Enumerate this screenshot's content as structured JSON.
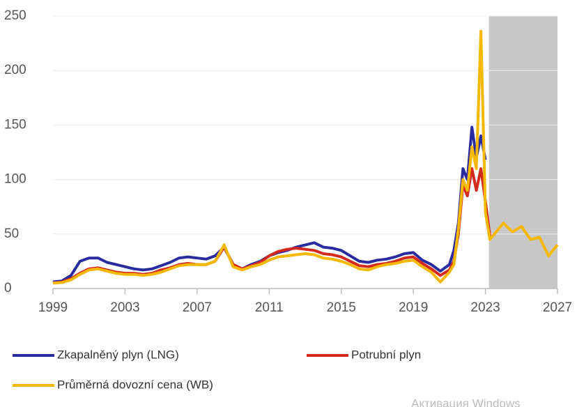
{
  "chart_data": {
    "type": "line",
    "x": [
      1999,
      1999.5,
      2000,
      2000.5,
      2001,
      2001.5,
      2002,
      2002.5,
      2003,
      2003.5,
      2004,
      2004.5,
      2005,
      2005.5,
      2006,
      2006.5,
      2007,
      2007.5,
      2008,
      2008.5,
      2009,
      2009.5,
      2010,
      2010.5,
      2011,
      2011.5,
      2012,
      2012.5,
      2013,
      2013.5,
      2014,
      2014.5,
      2015,
      2015.5,
      2016,
      2016.5,
      2017,
      2017.5,
      2018,
      2018.5,
      2019,
      2019.5,
      2020,
      2020.5,
      2021,
      2021.25,
      2021.5,
      2021.75,
      2022,
      2022.25,
      2022.5,
      2022.75,
      2023,
      2023.25,
      2023.5,
      2024,
      2024.5,
      2025,
      2025.5,
      2026,
      2026.5,
      2027
    ],
    "series": [
      {
        "name": "Zkapalněný plyn (LNG)",
        "color": "#2b2ba0",
        "values": [
          6,
          7,
          12,
          25,
          28,
          28,
          24,
          22,
          20,
          18,
          17,
          18,
          21,
          24,
          28,
          29,
          28,
          27,
          30,
          38,
          22,
          18,
          22,
          25,
          30,
          33,
          35,
          38,
          40,
          42,
          38,
          37,
          35,
          30,
          25,
          24,
          26,
          27,
          29,
          32,
          33,
          26,
          22,
          16,
          22,
          35,
          60,
          110,
          100,
          148,
          120,
          140,
          118,
          null,
          null,
          null,
          null,
          null,
          null,
          null,
          null,
          null
        ]
      },
      {
        "name": "Potrubní plyn",
        "color": "#d42a1e",
        "values": [
          5,
          6,
          9,
          14,
          18,
          19,
          17,
          15,
          14,
          14,
          13,
          14,
          17,
          19,
          22,
          23,
          22,
          22,
          25,
          38,
          22,
          18,
          21,
          24,
          30,
          34,
          36,
          37,
          36,
          35,
          32,
          31,
          29,
          25,
          21,
          20,
          22,
          23,
          25,
          28,
          29,
          23,
          18,
          12,
          17,
          25,
          50,
          95,
          85,
          110,
          90,
          110,
          80,
          48,
          null,
          null,
          null,
          null,
          null,
          null,
          null,
          null
        ]
      },
      {
        "name": "Průměrná dovozní cena (WB)",
        "color": "#f5b800",
        "values": [
          5,
          5.5,
          8,
          13,
          17,
          18,
          16,
          14,
          13,
          13,
          12,
          13,
          15,
          18,
          21,
          22,
          22,
          22,
          25,
          40,
          20,
          17,
          20,
          22,
          26,
          29,
          30,
          31,
          32,
          31,
          28,
          27,
          25,
          22,
          18,
          17,
          20,
          22,
          23,
          25,
          26,
          20,
          15,
          6,
          15,
          22,
          55,
          100,
          90,
          130,
          110,
          236,
          70,
          45,
          50,
          60,
          52,
          57,
          45,
          47,
          30,
          40
        ]
      }
    ],
    "xlim": [
      1999,
      2027
    ],
    "xticks": [
      1999,
      2003,
      2007,
      2011,
      2015,
      2019,
      2023,
      2027
    ],
    "ylim": [
      0,
      250
    ],
    "yticks": [
      0,
      50,
      100,
      150,
      200,
      250
    ],
    "grid": true,
    "shade_xlim": [
      2023.2,
      2027
    ],
    "shade_color": "#c8c8c8",
    "watermark": "Активация Windows"
  }
}
